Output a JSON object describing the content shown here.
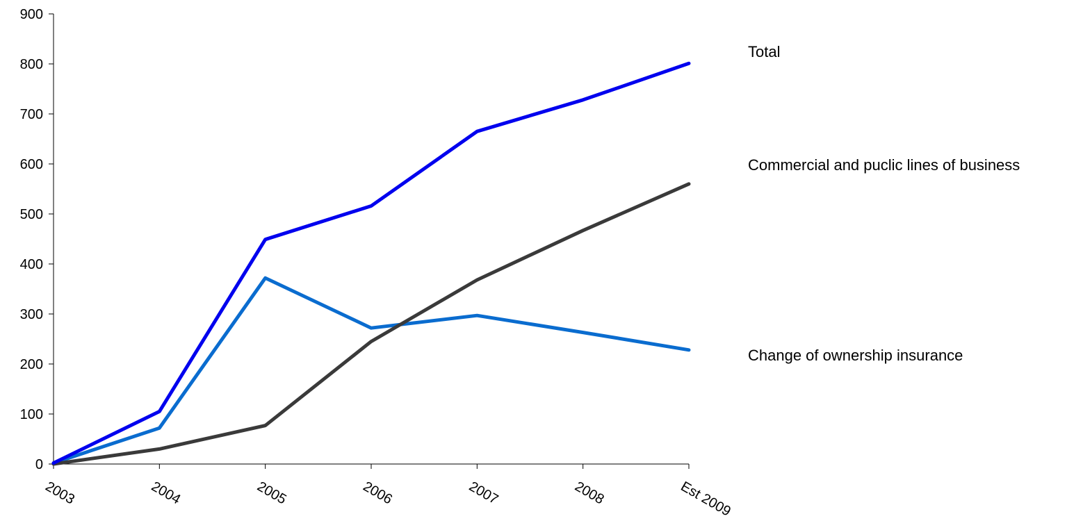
{
  "chart_data": {
    "type": "line",
    "title": "",
    "xlabel": "",
    "ylabel": "",
    "categories": [
      "2003",
      "2004",
      "2005",
      "2006",
      "2007",
      "2008",
      "Est 2009"
    ],
    "ylim": [
      0,
      900
    ],
    "yticks": [
      0,
      100,
      200,
      300,
      400,
      500,
      600,
      700,
      800,
      900
    ],
    "grid": false,
    "legend": "direct labels at right of plot",
    "series": [
      {
        "name": "Total",
        "color": "#0000ee",
        "values": [
          2,
          105,
          449,
          516,
          665,
          728,
          801
        ]
      },
      {
        "name": "Commercial and puclic lines of business",
        "color": "#3a3a3a",
        "values": [
          0,
          30,
          77,
          245,
          368,
          467,
          560
        ]
      },
      {
        "name": "Change of ownership insurance",
        "color": "#0a6ccf",
        "values": [
          2,
          72,
          372,
          272,
          297,
          263,
          228
        ]
      }
    ]
  }
}
